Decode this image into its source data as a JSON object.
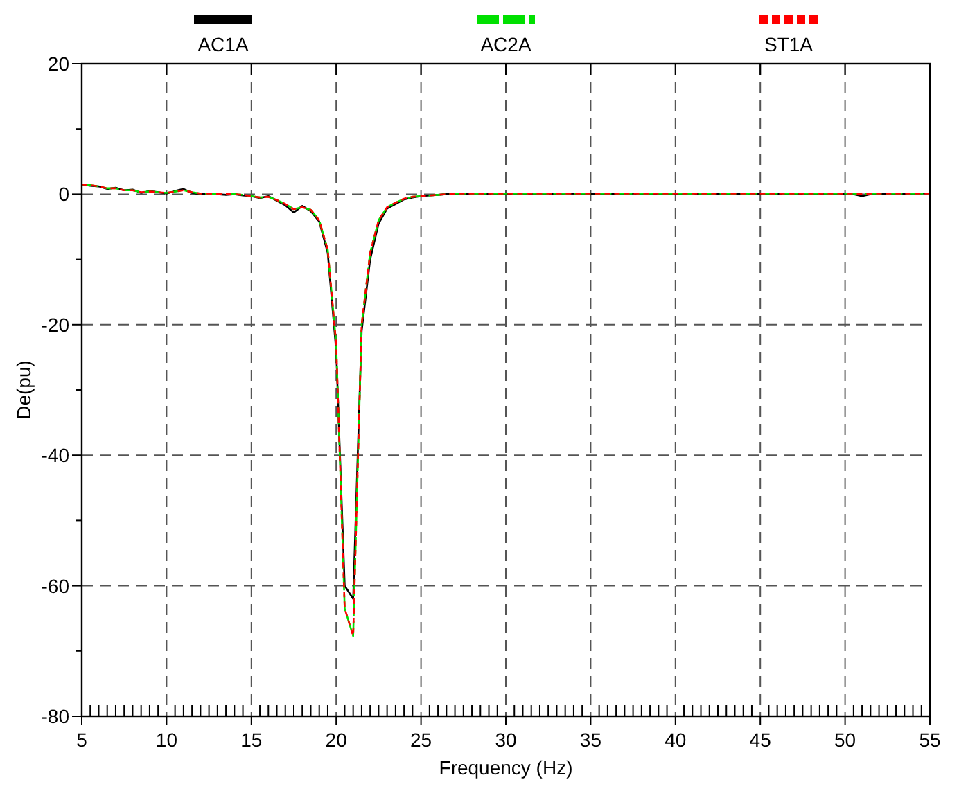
{
  "chart_data": {
    "type": "line",
    "xlabel": "Frequency (Hz)",
    "ylabel": "De(pu)",
    "x": [
      5,
      5.5,
      6,
      6.5,
      7,
      7.5,
      8,
      8.5,
      9,
      9.5,
      10,
      10.5,
      11,
      11.5,
      12,
      12.5,
      13,
      13.5,
      14,
      14.5,
      15,
      15.5,
      16,
      16.5,
      17,
      17.5,
      18,
      18.5,
      19,
      19.5,
      20,
      20.5,
      21,
      21.5,
      22,
      22.5,
      23,
      23.5,
      24,
      24.5,
      25,
      25.5,
      26,
      26.5,
      27,
      27.5,
      28,
      28.5,
      29,
      29.5,
      30,
      30.5,
      31,
      31.5,
      32,
      32.5,
      33,
      33.5,
      34,
      34.5,
      35,
      35.5,
      36,
      36.5,
      37,
      37.5,
      38,
      38.5,
      39,
      39.5,
      40,
      40.5,
      41,
      41.5,
      42,
      42.5,
      43,
      43.5,
      44,
      44.5,
      45,
      45.5,
      46,
      46.5,
      47,
      47.5,
      48,
      48.5,
      49,
      49.5,
      50,
      50.5,
      51,
      51.5,
      52,
      52.5,
      53,
      53.5,
      54,
      54.5,
      55
    ],
    "series": [
      {
        "name": "AC1A",
        "color": "#000000",
        "line_style": "solid",
        "values": [
          1.5,
          1.3,
          1.2,
          0.8,
          1.0,
          0.6,
          0.7,
          0.2,
          0.5,
          0.3,
          0.1,
          0.5,
          0.8,
          0.2,
          0,
          0.1,
          0,
          -0.1,
          0,
          -0.2,
          -0.3,
          -0.6,
          -0.3,
          -1.0,
          -1.7,
          -2.8,
          -1.8,
          -2.6,
          -4.2,
          -9,
          -24,
          -60,
          -62,
          -21,
          -10,
          -4.5,
          -2.2,
          -1.5,
          -0.8,
          -0.5,
          -0.3,
          -0.2,
          -0.1,
          0,
          0.1,
          0,
          0.1,
          0.1,
          0,
          0.1,
          0,
          0.1,
          0.1,
          0,
          0.1,
          0,
          0,
          0.1,
          0.1,
          0,
          0.1,
          0,
          0.1,
          0,
          0.1,
          0.1,
          0,
          0.1,
          0,
          0.1,
          0,
          0.1,
          0.1,
          0,
          0.1,
          0,
          0.1,
          0,
          0.1,
          0.1,
          0,
          0.1,
          0,
          0.1,
          0,
          0.1,
          0,
          0.1,
          0.1,
          0,
          0.1,
          0,
          -0.3,
          0,
          0.1,
          0,
          0.1,
          0,
          0.1,
          0.1,
          0.1
        ]
      },
      {
        "name": "AC2A",
        "color": "#00e000",
        "line_style": "dashed",
        "values": [
          1.5,
          1.4,
          1.2,
          0.9,
          0.9,
          0.6,
          0.6,
          0.3,
          0.4,
          0.3,
          0.2,
          0.4,
          0.6,
          0.3,
          0.1,
          0.1,
          0,
          0,
          0,
          -0.1,
          -0.3,
          -0.5,
          -0.4,
          -0.9,
          -1.5,
          -2.3,
          -2.0,
          -2.4,
          -4.0,
          -8.5,
          -23,
          -63.5,
          -67.7,
          -20,
          -9,
          -4,
          -2,
          -1.3,
          -0.7,
          -0.4,
          -0.3,
          -0.2,
          -0.1,
          0,
          0.1,
          0.1,
          0.1,
          0.1,
          0.1,
          0.1,
          0.1,
          0.1,
          0.1,
          0.1,
          0.1,
          0.1,
          0.1,
          0.1,
          0.1,
          0.1,
          0.1,
          0.1,
          0.1,
          0.1,
          0.1,
          0.1,
          0.1,
          0.1,
          0.1,
          0.1,
          0.1,
          0.1,
          0.1,
          0.1,
          0.1,
          0.1,
          0.1,
          0.1,
          0.1,
          0.1,
          0.1,
          0.1,
          0.1,
          0.1,
          0.1,
          0.1,
          0.1,
          0.1,
          0.1,
          0.1,
          0.1,
          0.1,
          0,
          0.1,
          0.1,
          0.1,
          0.1,
          0.1,
          0.1,
          0.1,
          0.1
        ]
      },
      {
        "name": "ST1A",
        "color": "#ff0000",
        "line_style": "dotted",
        "values": [
          1.5,
          1.4,
          1.2,
          0.9,
          0.9,
          0.6,
          0.6,
          0.3,
          0.4,
          0.3,
          0.2,
          0.4,
          0.6,
          0.3,
          0.1,
          0.1,
          0,
          0,
          0,
          -0.1,
          -0.3,
          -0.5,
          -0.4,
          -0.9,
          -1.5,
          -2.3,
          -2.0,
          -2.4,
          -4.0,
          -8.5,
          -23,
          -63.5,
          -67.7,
          -20,
          -9,
          -4,
          -2,
          -1.3,
          -0.7,
          -0.4,
          -0.3,
          -0.2,
          -0.1,
          0,
          0.1,
          0.1,
          0.1,
          0.1,
          0.1,
          0.1,
          0.1,
          0.1,
          0.1,
          0.1,
          0.1,
          0.1,
          0.1,
          0.1,
          0.1,
          0.1,
          0.1,
          0.1,
          0.1,
          0.1,
          0.1,
          0.1,
          0.1,
          0.1,
          0.1,
          0.1,
          0.1,
          0.1,
          0.1,
          0.1,
          0.1,
          0.1,
          0.1,
          0.1,
          0.1,
          0.1,
          0.1,
          0.1,
          0.1,
          0.1,
          0.1,
          0.1,
          0.1,
          0.1,
          0.1,
          0.1,
          0.1,
          0.1,
          0,
          0.1,
          0.1,
          0.1,
          0.1,
          0.1,
          0.1,
          0.1,
          0.1
        ]
      }
    ],
    "xlim": [
      5,
      55
    ],
    "xticks": [
      5,
      {
        "value": 5.5,
        "label": null
      },
      {
        "value": 6,
        "label": null
      },
      {
        "value": 6.5,
        "label": null
      },
      {
        "value": 7,
        "label": null
      },
      {
        "value": 7.5,
        "label": null
      },
      {
        "value": 8,
        "label": null
      },
      {
        "value": 8.5,
        "label": null
      },
      {
        "value": 9,
        "label": null
      },
      {
        "value": 9.5,
        "label": null
      },
      10,
      {
        "value": 10.5,
        "label": null
      },
      {
        "value": 11,
        "label": null
      },
      {
        "value": 11.5,
        "label": null
      },
      {
        "value": 12,
        "label": null
      },
      {
        "value": 12.5,
        "label": null
      },
      {
        "value": 13,
        "label": null
      },
      {
        "value": 13.5,
        "label": null
      },
      {
        "value": 14,
        "label": null
      },
      {
        "value": 14.5,
        "label": null
      },
      15,
      {
        "value": 15.5,
        "label": null
      },
      {
        "value": 16,
        "label": null
      },
      {
        "value": 16.5,
        "label": null
      },
      {
        "value": 17,
        "label": null
      },
      {
        "value": 17.5,
        "label": null
      },
      {
        "value": 18,
        "label": null
      },
      {
        "value": 18.5,
        "label": null
      },
      {
        "value": 19,
        "label": null
      },
      {
        "value": 19.5,
        "label": null
      },
      20,
      {
        "value": 20.5,
        "label": null
      },
      {
        "value": 21,
        "label": null
      },
      {
        "value": 21.5,
        "label": null
      },
      {
        "value": 22,
        "label": null
      },
      {
        "value": 22.5,
        "label": null
      },
      {
        "value": 23,
        "label": null
      },
      {
        "value": 23.5,
        "label": null
      },
      {
        "value": 24,
        "label": null
      },
      {
        "value": 24.5,
        "label": null
      },
      25,
      {
        "value": 25.5,
        "label": null
      },
      {
        "value": 26,
        "label": null
      },
      {
        "value": 26.5,
        "label": null
      },
      {
        "value": 27,
        "label": null
      },
      {
        "value": 27.5,
        "label": null
      },
      {
        "value": 28,
        "label": null
      },
      {
        "value": 28.5,
        "label": null
      },
      {
        "value": 29,
        "label": null
      },
      {
        "value": 29.5,
        "label": null
      },
      30,
      {
        "value": 30.5,
        "label": null
      },
      {
        "value": 31,
        "label": null
      },
      {
        "value": 31.5,
        "label": null
      },
      {
        "value": 32,
        "label": null
      },
      {
        "value": 32.5,
        "label": null
      },
      {
        "value": 33,
        "label": null
      },
      {
        "value": 33.5,
        "label": null
      },
      {
        "value": 34,
        "label": null
      },
      {
        "value": 34.5,
        "label": null
      },
      35,
      {
        "value": 35.5,
        "label": null
      },
      {
        "value": 36,
        "label": null
      },
      {
        "value": 36.5,
        "label": null
      },
      {
        "value": 37,
        "label": null
      },
      {
        "value": 37.5,
        "label": null
      },
      {
        "value": 38,
        "label": null
      },
      {
        "value": 38.5,
        "label": null
      },
      {
        "value": 39,
        "label": null
      },
      {
        "value": 39.5,
        "label": null
      },
      40,
      {
        "value": 40.5,
        "label": null
      },
      {
        "value": 41,
        "label": null
      },
      {
        "value": 41.5,
        "label": null
      },
      {
        "value": 42,
        "label": null
      },
      {
        "value": 42.5,
        "label": null
      },
      {
        "value": 43,
        "label": null
      },
      {
        "value": 43.5,
        "label": null
      },
      {
        "value": 44,
        "label": null
      },
      {
        "value": 44.5,
        "label": null
      },
      45,
      {
        "value": 45.5,
        "label": null
      },
      {
        "value": 46,
        "label": null
      },
      {
        "value": 46.5,
        "label": null
      },
      {
        "value": 47,
        "label": null
      },
      {
        "value": 47.5,
        "label": null
      },
      {
        "value": 48,
        "label": null
      },
      {
        "value": 48.5,
        "label": null
      },
      {
        "value": 49,
        "label": null
      },
      {
        "value": 49.5,
        "label": null
      },
      50,
      {
        "value": 50.5,
        "label": null
      },
      {
        "value": 51,
        "label": null
      },
      {
        "value": 51.5,
        "label": null
      },
      {
        "value": 52,
        "label": null
      },
      {
        "value": 52.5,
        "label": null
      },
      {
        "value": 53,
        "label": null
      },
      {
        "value": 53.5,
        "label": null
      },
      {
        "value": 54,
        "label": null
      },
      {
        "value": 54.5,
        "label": null
      },
      55
    ],
    "ylim": [
      -80,
      20
    ],
    "yticks": [
      -80,
      {
        "value": -70,
        "label": null
      },
      -60,
      {
        "value": -50,
        "label": null
      },
      -40,
      {
        "value": -30,
        "label": null
      },
      -20,
      {
        "value": -10,
        "label": null
      },
      0,
      {
        "value": 10,
        "label": null
      },
      20
    ],
    "grid": true,
    "legend": "top"
  }
}
